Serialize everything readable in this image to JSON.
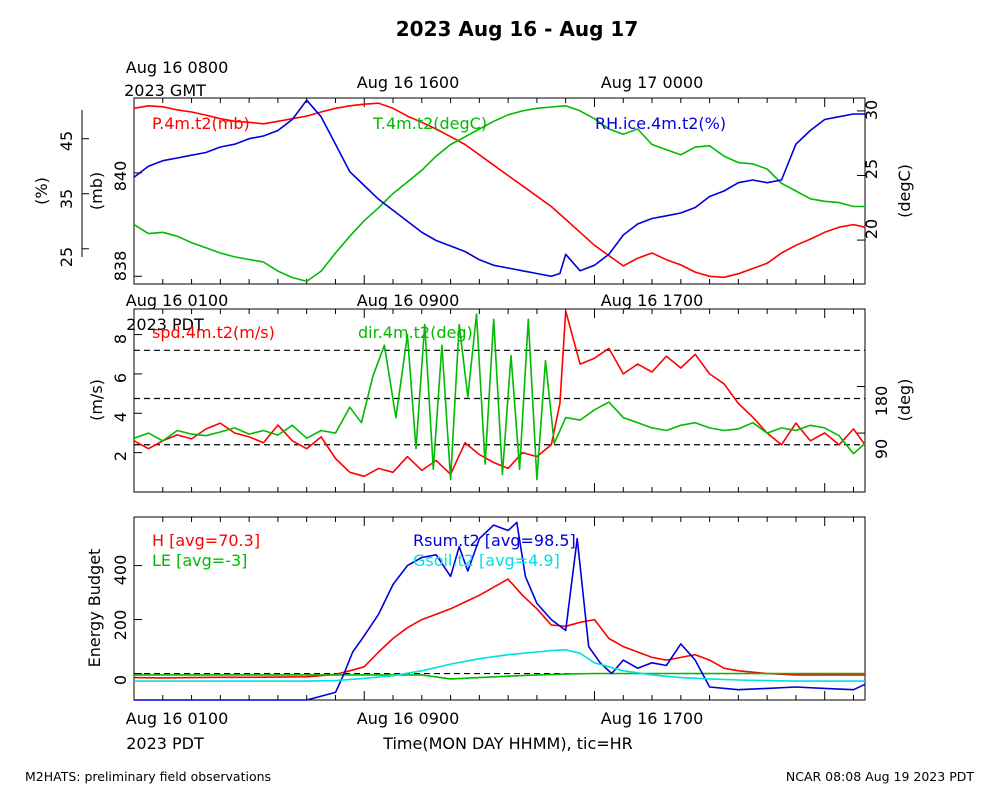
{
  "title": "2023 Aug 16 - Aug 17",
  "top_axis": {
    "utc_labels": [
      "Aug 16 0800",
      "Aug 16 1600",
      "Aug 17 0000"
    ],
    "utc_year_label": "2023 GMT"
  },
  "local_axis": {
    "labels": [
      "Aug 16 0100",
      "Aug 16 0900",
      "Aug 16 1700"
    ],
    "year_label": "2023 PDT"
  },
  "xlabel": "Time(MON DAY HHMM), tic=HR",
  "footer_left": "M2HATS: preliminary field observations",
  "footer_right": "NCAR 08:08 Aug 19 2023 PDT",
  "colors": {
    "red": "#ff0000",
    "green": "#00bb00",
    "blue": "#0000dd",
    "cyan": "#00e0e0",
    "black": "#000000"
  },
  "chart_data": [
    {
      "type": "line",
      "x_unit": "hours since Aug 16 0100 PDT",
      "xlim": [
        0,
        25.4
      ],
      "axes": [
        {
          "label": "(%)",
          "ticks": [
            25,
            35,
            45
          ],
          "ylim": [
            18.6,
            52.4
          ]
        },
        {
          "label": "(mb)",
          "ticks": [
            838,
            840
          ],
          "ylim": [
            837.85,
            841.45
          ]
        },
        {
          "label": "(degC)",
          "ticks": [
            20,
            25,
            30
          ],
          "ylim": [
            16.6,
            31.0
          ]
        }
      ],
      "series": [
        {
          "name": "P.4m.t2(mb)",
          "color": "red",
          "axis": 1,
          "x": [
            0,
            0.5,
            1,
            1.5,
            2,
            2.5,
            3,
            3.5,
            4,
            4.5,
            5,
            5.5,
            6,
            6.5,
            7,
            7.5,
            8,
            8.5,
            9,
            9.5,
            10,
            10.5,
            11,
            11.5,
            12,
            12.5,
            13,
            13.5,
            14,
            14.5,
            15,
            15.5,
            16,
            16.5,
            17,
            17.5,
            18,
            18.5,
            19,
            19.5,
            20,
            20.5,
            21,
            21.5,
            22,
            22.5,
            23,
            23.5,
            24,
            24.5,
            25,
            25.4
          ],
          "y": [
            841.25,
            841.3,
            841.28,
            841.22,
            841.18,
            841.12,
            841.05,
            841.0,
            840.98,
            840.95,
            841.0,
            841.05,
            841.1,
            841.18,
            841.25,
            841.3,
            841.33,
            841.35,
            841.25,
            841.1,
            840.98,
            840.85,
            840.7,
            840.55,
            840.35,
            840.15,
            839.95,
            839.75,
            839.55,
            839.35,
            839.1,
            838.85,
            838.6,
            838.4,
            838.2,
            838.35,
            838.45,
            838.32,
            838.22,
            838.08,
            838.0,
            837.98,
            838.05,
            838.15,
            838.25,
            838.45,
            838.6,
            838.72,
            838.85,
            838.95,
            839.0,
            838.95
          ]
        },
        {
          "name": "T.4m.t2(degC)",
          "color": "green",
          "axis": 2,
          "x": [
            0,
            0.5,
            1,
            1.5,
            2,
            2.5,
            3,
            3.5,
            4,
            4.5,
            5,
            5.5,
            6,
            6.5,
            7,
            7.5,
            8,
            8.5,
            9,
            9.5,
            10,
            10.5,
            11,
            11.5,
            12,
            12.5,
            13,
            13.5,
            14,
            14.5,
            15,
            15.5,
            16,
            16.5,
            17,
            17.5,
            18,
            18.5,
            19,
            19.5,
            20,
            20.5,
            21,
            21.5,
            22,
            22.5,
            23,
            23.5,
            24,
            24.5,
            25,
            25.4
          ],
          "y": [
            21.2,
            20.5,
            20.6,
            20.3,
            19.8,
            19.4,
            19.0,
            18.7,
            18.5,
            18.3,
            17.6,
            17.1,
            16.8,
            17.6,
            19.0,
            20.3,
            21.5,
            22.5,
            23.6,
            24.5,
            25.4,
            26.5,
            27.4,
            28.0,
            28.6,
            29.2,
            29.7,
            30.0,
            30.2,
            30.3,
            30.4,
            30.0,
            29.4,
            28.6,
            28.2,
            28.6,
            27.4,
            27.0,
            26.6,
            27.2,
            27.3,
            26.5,
            26.0,
            25.9,
            25.5,
            24.4,
            23.8,
            23.2,
            23.0,
            22.9,
            22.6,
            22.6
          ]
        },
        {
          "name": "RH.ice.4m.t2(%)",
          "color": "blue",
          "axis": 0,
          "x": [
            0,
            0.5,
            1,
            1.5,
            2,
            2.5,
            3,
            3.5,
            4,
            4.5,
            5,
            5.5,
            6,
            6.5,
            7,
            7.5,
            8,
            8.5,
            9,
            9.5,
            10,
            10.5,
            11,
            11.5,
            12,
            12.5,
            13,
            13.5,
            14,
            14.5,
            14.8,
            15,
            15.5,
            16,
            16.5,
            17,
            17.5,
            18,
            18.5,
            19,
            19.5,
            20,
            20.5,
            21,
            21.5,
            22,
            22.5,
            23,
            23.5,
            24,
            24.5,
            25,
            25.4
          ],
          "y": [
            38.0,
            40.0,
            41.0,
            41.5,
            42.0,
            42.5,
            43.5,
            44.0,
            45.0,
            45.5,
            46.5,
            48.5,
            52.0,
            49.0,
            44.0,
            39.0,
            36.5,
            34.0,
            32.0,
            30.0,
            28.0,
            26.5,
            25.5,
            24.5,
            23.0,
            22.0,
            21.5,
            21.0,
            20.5,
            20.0,
            20.5,
            24.0,
            21.0,
            22.0,
            24.0,
            27.5,
            29.5,
            30.5,
            31.0,
            31.5,
            32.5,
            34.5,
            35.5,
            37.0,
            37.5,
            37.0,
            37.5,
            44.0,
            46.5,
            48.5,
            49.0,
            49.5,
            49.5
          ]
        }
      ]
    },
    {
      "type": "line",
      "x_unit": "hours since Aug 16 0100 PDT",
      "xlim": [
        0,
        25.4
      ],
      "reference_lines": [
        2.4,
        4.75,
        7.2
      ],
      "axes": [
        {
          "label": "(m/s)",
          "ticks": [
            2,
            4,
            6,
            8
          ],
          "ylim": [
            0,
            9.3
          ]
        },
        {
          "label": "(deg)",
          "ticks": [
            90,
            180
          ],
          "ylim": [
            -24,
            330
          ]
        }
      ],
      "series": [
        {
          "name": "spd.4m.t2(m/s)",
          "color": "red",
          "axis": 0,
          "x": [
            0,
            0.5,
            1,
            1.5,
            2,
            2.5,
            3,
            3.5,
            4,
            4.5,
            5,
            5.5,
            6,
            6.5,
            7,
            7.5,
            8,
            8.5,
            9,
            9.5,
            10,
            10.5,
            11,
            11.5,
            12,
            12.5,
            13,
            13.5,
            14,
            14.5,
            14.8,
            15,
            15.5,
            16,
            16.5,
            17,
            17.5,
            18,
            18.5,
            19,
            19.5,
            20,
            20.5,
            21,
            21.5,
            22,
            22.5,
            23,
            23.5,
            24,
            24.5,
            25,
            25.4
          ],
          "y": [
            2.6,
            2.2,
            2.6,
            2.9,
            2.7,
            3.2,
            3.5,
            3.0,
            2.8,
            2.5,
            3.4,
            2.6,
            2.2,
            2.8,
            1.7,
            1.0,
            0.8,
            1.2,
            1.0,
            1.8,
            1.1,
            1.6,
            0.9,
            2.5,
            1.9,
            1.5,
            1.2,
            2.0,
            1.8,
            2.4,
            4.5,
            9.2,
            6.5,
            6.8,
            7.3,
            6.0,
            6.5,
            6.1,
            6.9,
            6.3,
            7.0,
            6.0,
            5.5,
            4.5,
            3.8,
            3.0,
            2.4,
            3.5,
            2.6,
            3.0,
            2.4,
            3.2,
            2.4
          ]
        },
        {
          "name": "dir.4m.t2(deg)",
          "color": "green",
          "axis": 1,
          "x": [
            0,
            0.5,
            1,
            1.5,
            2,
            2.5,
            3,
            3.5,
            4,
            4.5,
            5,
            5.5,
            6,
            6.5,
            7,
            7.5,
            7.9,
            8.3,
            8.7,
            9.1,
            9.5,
            9.8,
            10.1,
            10.4,
            10.7,
            11.0,
            11.3,
            11.6,
            11.9,
            12.2,
            12.5,
            12.8,
            13.1,
            13.4,
            13.7,
            14.0,
            14.3,
            14.6,
            15.0,
            15.5,
            16,
            16.5,
            17,
            17.5,
            18,
            18.5,
            19,
            19.5,
            20,
            20.5,
            21,
            21.5,
            22,
            22.5,
            23,
            23.5,
            24,
            24.5,
            25,
            25.4
          ],
          "y": [
            80,
            90,
            75,
            95,
            88,
            85,
            92,
            100,
            88,
            95,
            86,
            105,
            80,
            95,
            90,
            140,
            110,
            200,
            260,
            120,
            280,
            60,
            300,
            20,
            260,
            0,
            300,
            160,
            320,
            30,
            310,
            10,
            240,
            20,
            310,
            0,
            230,
            70,
            120,
            115,
            135,
            150,
            120,
            110,
            100,
            95,
            105,
            110,
            100,
            95,
            98,
            110,
            90,
            100,
            95,
            105,
            100,
            85,
            50,
            70
          ]
        }
      ]
    },
    {
      "type": "line",
      "x_unit": "hours since Aug 16 0100 PDT",
      "xlim": [
        0,
        25.4
      ],
      "reference_lines": [
        0
      ],
      "axes": [
        {
          "label": "Energy Budget",
          "ticks": [
            0,
            200,
            400
          ],
          "ylim": [
            -98,
            580
          ]
        }
      ],
      "series": [
        {
          "name": "H [avg=70.3]",
          "color": "red",
          "x": [
            0,
            1,
            2,
            3,
            4,
            5,
            6,
            7,
            7.5,
            8,
            8.5,
            9,
            9.5,
            10,
            10.5,
            11,
            11.5,
            12,
            12.5,
            13,
            13.5,
            14,
            14.5,
            15,
            15.5,
            16,
            16.5,
            17,
            17.5,
            18,
            18.5,
            19,
            19.5,
            20,
            20.5,
            21,
            21.5,
            22,
            23,
            24,
            25,
            25.4
          ],
          "y": [
            -15,
            -16,
            -15,
            -14,
            -14,
            -13,
            -12,
            -3,
            10,
            25,
            80,
            130,
            170,
            200,
            220,
            240,
            265,
            290,
            320,
            350,
            290,
            240,
            180,
            175,
            190,
            200,
            130,
            100,
            80,
            60,
            50,
            60,
            70,
            50,
            20,
            10,
            5,
            0,
            -5,
            -5,
            -5,
            -5
          ]
        },
        {
          "name": "LE [avg=-3]",
          "color": "green",
          "x": [
            0,
            2,
            4,
            6,
            8,
            10,
            11,
            12,
            13,
            14,
            15,
            16,
            17,
            18,
            19,
            20,
            21,
            22,
            23,
            24,
            25.4
          ],
          "y": [
            -5,
            -5,
            -5,
            -5,
            -5,
            -5,
            -20,
            -15,
            -10,
            -5,
            -2,
            0,
            0,
            0,
            0,
            0,
            0,
            0,
            0,
            0,
            0
          ]
        },
        {
          "name": "Rsum.t2 [avg=98.5]",
          "color": "blue",
          "x": [
            0,
            1,
            2,
            3,
            4,
            5,
            6,
            7,
            7.3,
            7.6,
            8,
            8.5,
            9,
            9.5,
            10,
            10.5,
            11,
            11.3,
            11.6,
            12,
            12.5,
            13,
            13.3,
            13.6,
            14,
            14.5,
            15,
            15.4,
            15.8,
            16.2,
            16.6,
            17,
            17.5,
            18,
            18.5,
            19,
            19.5,
            20,
            21,
            22,
            23,
            24,
            25,
            25.4
          ],
          "y": [
            -100,
            -100,
            -100,
            -100,
            -100,
            -100,
            -100,
            -70,
            0,
            80,
            140,
            220,
            330,
            400,
            430,
            440,
            360,
            470,
            380,
            500,
            550,
            530,
            560,
            360,
            260,
            200,
            160,
            500,
            100,
            40,
            0,
            50,
            20,
            40,
            30,
            110,
            50,
            -50,
            -60,
            -55,
            -50,
            -55,
            -60,
            -40
          ]
        },
        {
          "name": "Gsoil.t2 [avg=4.9]",
          "color": "cyan",
          "x": [
            0,
            2,
            4,
            6,
            7,
            8,
            9,
            10,
            11,
            12,
            13,
            14,
            14.5,
            15,
            15.5,
            16,
            17,
            18,
            19,
            20,
            21,
            22,
            23,
            24,
            25,
            25.4
          ],
          "y": [
            -28,
            -28,
            -28,
            -28,
            -26,
            -18,
            -8,
            10,
            35,
            55,
            70,
            80,
            85,
            88,
            75,
            40,
            10,
            -5,
            -15,
            -20,
            -24,
            -26,
            -28,
            -28,
            -28,
            -28
          ]
        }
      ]
    }
  ]
}
